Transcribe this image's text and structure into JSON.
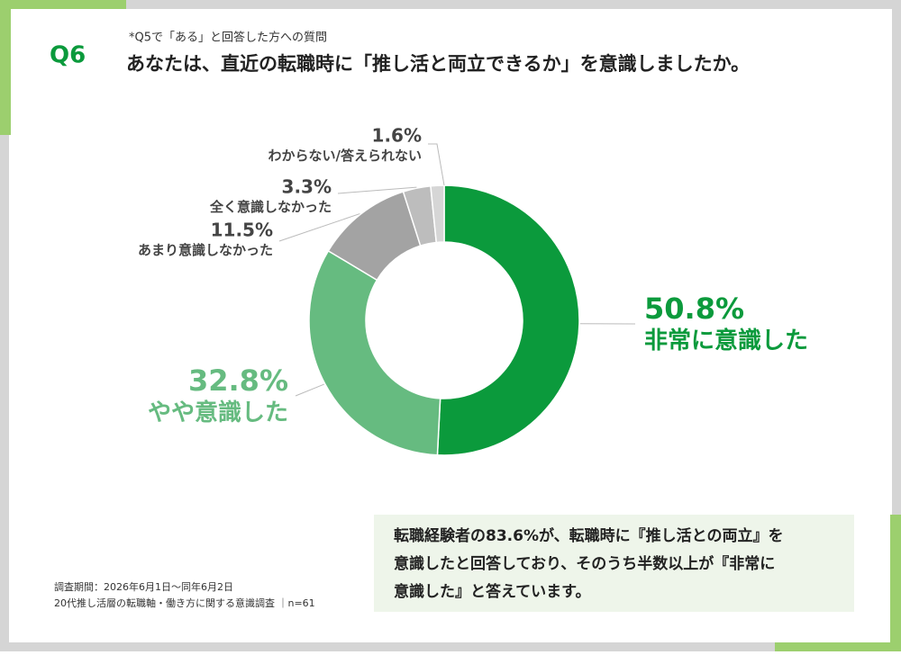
{
  "header": {
    "question": "Q6",
    "subtitle": "*Q5で「ある」と回答した方への質問",
    "title": "あなたは、直近の転職時に「推し活と両立できるか」を意識しましたか。"
  },
  "chart_data": {
    "type": "donut",
    "categories": [
      "非常に意識した",
      "やや意識した",
      "あまり意識しなかった",
      "全く意識しなかった",
      "わからない/答えられない"
    ],
    "values": [
      50.8,
      32.8,
      11.5,
      3.3,
      1.6
    ],
    "value_labels": [
      "50.8%",
      "32.8%",
      "11.5%",
      "3.3%",
      "1.6%"
    ],
    "colors": [
      "#0b9a3c",
      "#66bb80",
      "#a3a3a3",
      "#bdbdbd",
      "#d6d6d6"
    ]
  },
  "note": {
    "lines": [
      "転職経験者の83.6%が、転職時に『推し活との両立』を",
      "意識したと回答しており、そのうち半数以上が『非常に",
      "意識した』と答えています。"
    ]
  },
  "footer": {
    "lines": [
      "調査期間：2026年6月1日～同年6月2日",
      "20代推し活層の転職軸・働き方に関する意識調査 ｜n=61"
    ]
  }
}
